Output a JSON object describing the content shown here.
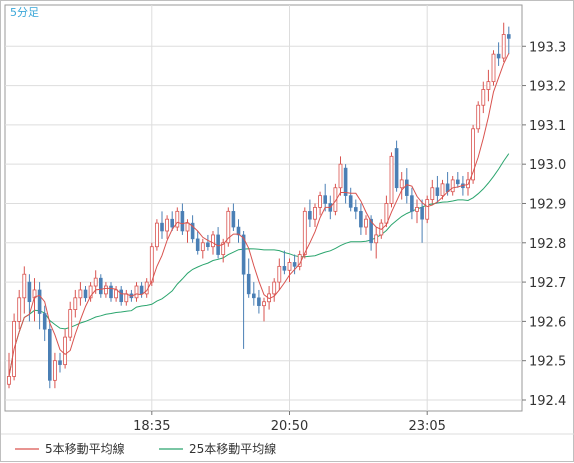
{
  "timeframe_label": "5分足",
  "chart_data": {
    "type": "candlestick",
    "y_ticks": [
      193.3,
      193.2,
      193.1,
      193.0,
      192.9,
      192.8,
      192.7,
      192.6,
      192.5,
      192.4
    ],
    "y_tick_labels": [
      "193.3",
      "193.2",
      "193.1",
      "193.0",
      "192.9",
      "192.8",
      "192.7",
      "192.6",
      "192.5",
      "192.4"
    ],
    "ylim": [
      192.372,
      193.405
    ],
    "x_tick_labels": [
      "18:35",
      "20:50",
      "23:05"
    ],
    "x_tick_bar_index": [
      28,
      55,
      82
    ],
    "grid": true,
    "legend_position": "bottom-left",
    "colors": {
      "up": "#d9534f",
      "down": "#4a7fb5",
      "ma5": "#d9534f",
      "ma25": "#2ba56e",
      "grid": "#dddddd",
      "border": "#999999",
      "timeframe": "#3aa6d8"
    },
    "series": [
      {
        "name": "5本移動平均線",
        "color": "#d9534f",
        "period": 5
      },
      {
        "name": "25本移動平均線",
        "color": "#2ba56e",
        "period": 25
      }
    ],
    "candles": [
      [
        192.44,
        192.52,
        192.43,
        192.46
      ],
      [
        192.46,
        192.62,
        192.45,
        192.6
      ],
      [
        192.6,
        192.68,
        192.58,
        192.66
      ],
      [
        192.66,
        192.74,
        192.62,
        192.72
      ],
      [
        192.7,
        192.72,
        192.6,
        192.65
      ],
      [
        192.66,
        192.71,
        192.6,
        192.68
      ],
      [
        192.68,
        192.7,
        192.58,
        192.62
      ],
      [
        192.62,
        192.64,
        192.55,
        192.58
      ],
      [
        192.58,
        192.6,
        192.43,
        192.45
      ],
      [
        192.45,
        192.52,
        192.43,
        192.5
      ],
      [
        192.5,
        192.52,
        192.47,
        192.49
      ],
      [
        192.49,
        192.58,
        192.48,
        192.56
      ],
      [
        192.56,
        192.65,
        192.55,
        192.63
      ],
      [
        192.63,
        192.68,
        192.61,
        192.66
      ],
      [
        192.66,
        192.7,
        192.64,
        192.68
      ],
      [
        192.68,
        192.69,
        192.65,
        192.66
      ],
      [
        192.66,
        192.7,
        192.65,
        192.69
      ],
      [
        192.69,
        192.73,
        192.67,
        192.71
      ],
      [
        192.71,
        192.72,
        192.66,
        192.67
      ],
      [
        192.67,
        192.7,
        192.66,
        192.69
      ],
      [
        192.69,
        192.7,
        192.65,
        192.66
      ],
      [
        192.66,
        192.69,
        192.65,
        192.68
      ],
      [
        192.68,
        192.69,
        192.64,
        192.65
      ],
      [
        192.65,
        192.68,
        192.64,
        192.67
      ],
      [
        192.67,
        192.68,
        192.65,
        192.66
      ],
      [
        192.66,
        192.7,
        192.65,
        192.69
      ],
      [
        192.69,
        192.7,
        192.66,
        192.67
      ],
      [
        192.67,
        192.71,
        192.66,
        192.7
      ],
      [
        192.7,
        192.8,
        192.69,
        192.79
      ],
      [
        192.79,
        192.86,
        192.78,
        192.85
      ],
      [
        192.85,
        192.88,
        192.81,
        192.83
      ],
      [
        192.83,
        192.87,
        192.81,
        192.86
      ],
      [
        192.86,
        192.88,
        192.83,
        192.84
      ],
      [
        192.84,
        192.89,
        192.83,
        192.88
      ],
      [
        192.88,
        192.9,
        192.82,
        192.83
      ],
      [
        192.83,
        192.86,
        192.8,
        192.85
      ],
      [
        192.85,
        192.87,
        192.8,
        192.81
      ],
      [
        192.81,
        192.83,
        192.77,
        192.78
      ],
      [
        192.78,
        192.81,
        192.76,
        192.8
      ],
      [
        192.8,
        192.82,
        192.78,
        192.79
      ],
      [
        192.79,
        192.83,
        192.77,
        192.82
      ],
      [
        192.82,
        192.84,
        192.76,
        192.77
      ],
      [
        192.77,
        192.81,
        192.75,
        192.8
      ],
      [
        192.8,
        192.89,
        192.79,
        192.88
      ],
      [
        192.88,
        192.9,
        192.83,
        192.84
      ],
      [
        192.84,
        192.86,
        192.8,
        192.82
      ],
      [
        192.82,
        192.83,
        192.53,
        192.72
      ],
      [
        192.72,
        192.76,
        192.66,
        192.67
      ],
      [
        192.67,
        192.7,
        192.64,
        192.66
      ],
      [
        192.66,
        192.68,
        192.62,
        192.64
      ],
      [
        192.64,
        192.66,
        192.6,
        192.65
      ],
      [
        192.65,
        192.69,
        192.63,
        192.67
      ],
      [
        192.67,
        192.71,
        192.65,
        192.7
      ],
      [
        192.7,
        192.76,
        192.68,
        192.74
      ],
      [
        192.74,
        192.78,
        192.72,
        192.73
      ],
      [
        192.73,
        192.76,
        192.7,
        192.75
      ],
      [
        192.75,
        192.77,
        192.72,
        192.74
      ],
      [
        192.74,
        192.78,
        192.73,
        192.77
      ],
      [
        192.77,
        192.89,
        192.76,
        192.88
      ],
      [
        192.88,
        192.91,
        192.84,
        192.86
      ],
      [
        192.86,
        192.9,
        192.84,
        192.89
      ],
      [
        192.89,
        192.93,
        192.87,
        192.92
      ],
      [
        192.92,
        192.95,
        192.88,
        192.9
      ],
      [
        192.9,
        192.92,
        192.86,
        192.88
      ],
      [
        192.88,
        192.95,
        192.87,
        192.94
      ],
      [
        192.94,
        193.02,
        192.92,
        193.0
      ],
      [
        192.99,
        193.0,
        192.9,
        192.92
      ],
      [
        192.92,
        192.94,
        192.88,
        192.89
      ],
      [
        192.89,
        192.91,
        192.86,
        192.88
      ],
      [
        192.88,
        192.9,
        192.82,
        192.84
      ],
      [
        192.84,
        192.87,
        192.82,
        192.86
      ],
      [
        192.86,
        192.87,
        192.78,
        192.8
      ],
      [
        192.8,
        192.84,
        192.76,
        192.82
      ],
      [
        192.82,
        192.86,
        192.81,
        192.85
      ],
      [
        192.85,
        192.92,
        192.84,
        192.9
      ],
      [
        192.9,
        193.03,
        192.89,
        193.02
      ],
      [
        193.04,
        193.06,
        192.93,
        192.94
      ],
      [
        192.94,
        192.98,
        192.91,
        192.96
      ],
      [
        192.96,
        192.99,
        192.9,
        192.92
      ],
      [
        192.92,
        192.94,
        192.86,
        192.88
      ],
      [
        192.88,
        192.91,
        192.85,
        192.89
      ],
      [
        192.89,
        192.91,
        192.8,
        192.86
      ],
      [
        192.86,
        192.92,
        192.85,
        192.91
      ],
      [
        192.91,
        192.96,
        192.9,
        192.94
      ],
      [
        192.94,
        192.97,
        192.9,
        192.92
      ],
      [
        192.92,
        192.96,
        192.91,
        192.95
      ],
      [
        192.95,
        192.98,
        192.92,
        192.93
      ],
      [
        192.93,
        192.97,
        192.92,
        192.96
      ],
      [
        192.96,
        192.98,
        192.94,
        192.95
      ],
      [
        192.95,
        192.97,
        192.92,
        192.94
      ],
      [
        192.94,
        192.98,
        192.92,
        192.96
      ],
      [
        192.96,
        193.1,
        192.95,
        193.09
      ],
      [
        193.09,
        193.16,
        193.08,
        193.15
      ],
      [
        193.15,
        193.21,
        193.13,
        193.19
      ],
      [
        193.19,
        193.24,
        193.16,
        193.21
      ],
      [
        193.21,
        193.29,
        193.2,
        193.28
      ],
      [
        193.28,
        193.31,
        193.25,
        193.27
      ],
      [
        193.27,
        193.36,
        193.26,
        193.33
      ],
      [
        193.33,
        193.35,
        193.28,
        193.32
      ]
    ]
  },
  "legend": {
    "ma5_label": "5本移動平均線",
    "ma25_label": "25本移動平均線"
  }
}
